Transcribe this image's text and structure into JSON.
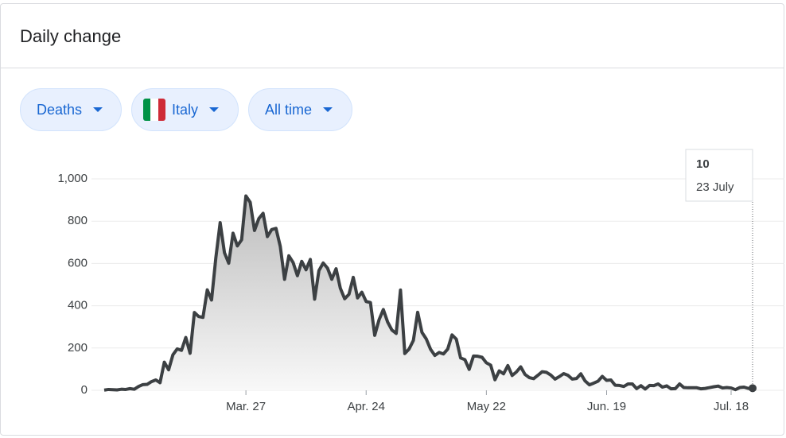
{
  "header": {
    "title": "Daily change"
  },
  "filters": [
    "Deaths",
    "Italy",
    "All time"
  ],
  "tooltip": {
    "label": "23 July"
  },
  "chart_data": {
    "type": "line",
    "categories": [
      null,
      null,
      null,
      null,
      null,
      null,
      null,
      null,
      null,
      null,
      null,
      null,
      null,
      null,
      null,
      null,
      null,
      null,
      null,
      null,
      null,
      null,
      null,
      null,
      null,
      null,
      null,
      null,
      null,
      null,
      null,
      null,
      null,
      "Mar. 27",
      null,
      null,
      null,
      null,
      null,
      null,
      null,
      null,
      null,
      null,
      null,
      null,
      null,
      null,
      null,
      null,
      null,
      null,
      null,
      null,
      null,
      null,
      null,
      null,
      null,
      null,
      null,
      "Apr. 24",
      null,
      null,
      null,
      null,
      null,
      null,
      null,
      null,
      null,
      null,
      null,
      null,
      null,
      null,
      null,
      null,
      null,
      null,
      null,
      null,
      null,
      null,
      null,
      null,
      null,
      null,
      null,
      "May 22",
      null,
      null,
      null,
      null,
      null,
      null,
      null,
      null,
      null,
      null,
      null,
      null,
      null,
      null,
      null,
      null,
      null,
      null,
      null,
      null,
      null,
      null,
      null,
      null,
      null,
      null,
      null,
      "Jun. 19",
      null,
      null,
      null,
      null,
      null,
      null,
      null,
      null,
      null,
      null,
      null,
      null,
      null,
      null,
      null,
      null,
      null,
      null,
      null,
      null,
      null,
      null,
      null,
      null,
      null,
      null,
      null,
      null,
      "Jul. 18",
      null,
      null,
      null,
      null,
      null
    ],
    "series": [
      {
        "color": "#3c4043",
        "values": [
          1,
          4,
          3,
          2,
          5,
          4,
          8,
          5,
          18,
          27,
          28,
          41,
          49,
          36,
          133,
          97,
          168,
          196,
          189,
          250,
          175,
          368,
          349,
          345,
          475,
          427,
          627,
          793,
          651,
          601,
          743,
          683,
          712,
          919,
          889,
          756,
          812,
          837,
          727,
          760,
          766,
          681,
          525,
          636,
          604,
          542,
          610,
          570,
          619,
          431,
          566,
          602,
          578,
          525,
          575,
          482,
          433,
          454,
          534,
          437,
          464,
          420,
          415,
          260,
          333,
          382,
          323,
          285,
          269,
          474,
          174,
          195,
          236,
          369,
          274,
          243,
          194,
          165,
          179,
          172,
          195,
          262,
          242,
          153,
          145,
          99,
          162,
          161,
          156,
          130,
          119,
          50,
          92,
          78,
          117,
          70,
          87,
          111,
          75,
          60,
          55,
          71,
          88,
          85,
          72,
          53,
          65,
          79,
          71,
          53,
          56,
          78,
          44,
          26,
          34,
          43,
          66,
          47,
          49,
          24,
          23,
          18,
          30,
          30,
          8,
          22,
          6,
          23,
          22,
          30,
          15,
          21,
          7,
          8,
          30,
          13,
          12,
          12,
          12,
          7,
          9,
          13,
          17,
          20,
          11,
          13,
          11,
          3,
          13,
          15,
          9,
          10
        ]
      }
    ],
    "ylim": [
      0,
      1000
    ],
    "yticks": [
      0,
      200,
      400,
      600,
      800,
      {
        "value": 1000,
        "label": "1,000"
      }
    ],
    "grid": true
  }
}
